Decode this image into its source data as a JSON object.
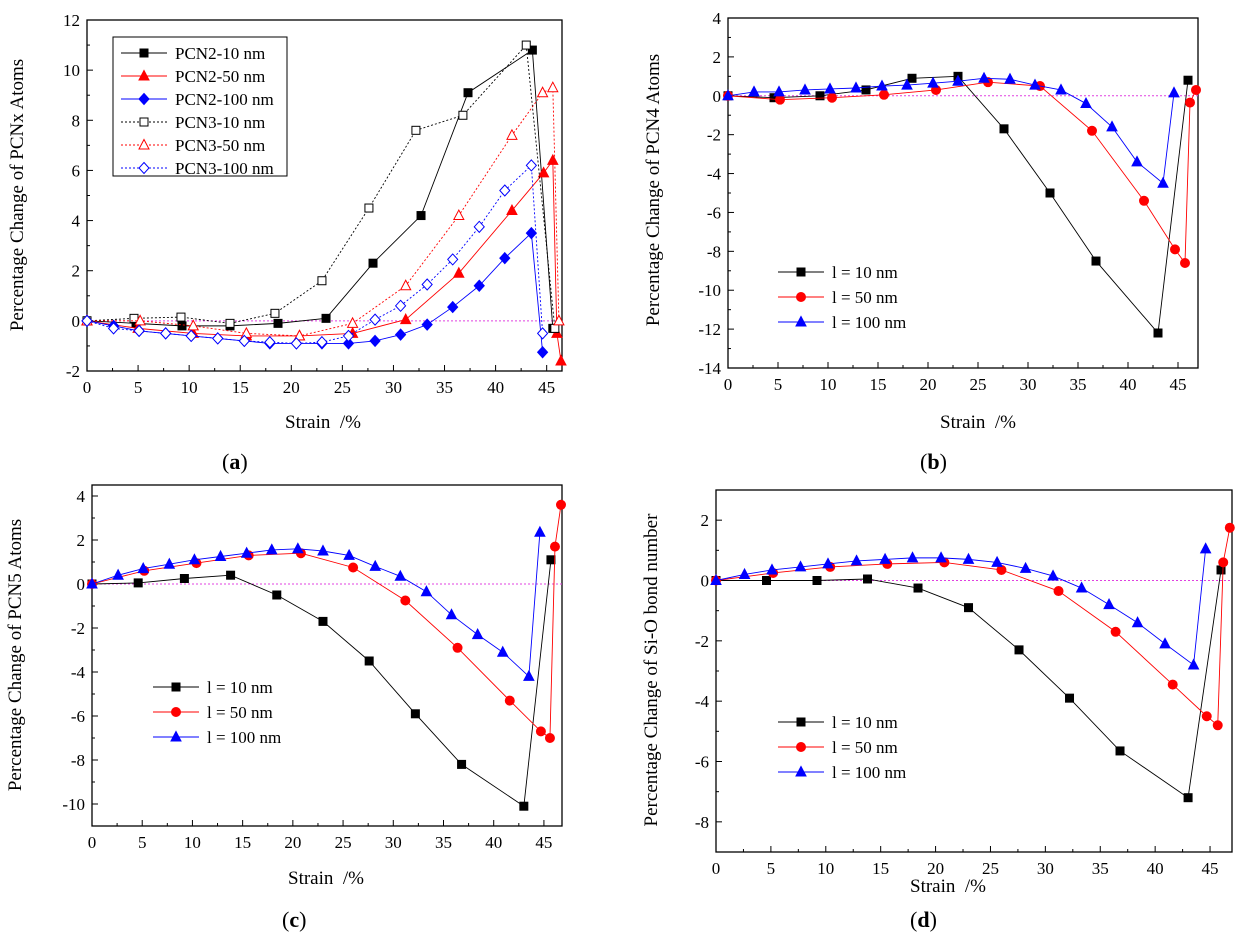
{
  "colors": {
    "black": "#000000",
    "red": "#ff0000",
    "blue": "#0000ff",
    "zero_line": "#e040e0"
  },
  "chart_data": [
    {
      "id": "a",
      "type": "line",
      "caption": "a",
      "xlabel": "Strain  /%",
      "ylabel": "Percentage Change of PCNx Atoms",
      "xlim": [
        0,
        46.5
      ],
      "ylim": [
        -2,
        12
      ],
      "xticks": [
        0,
        5,
        10,
        15,
        20,
        25,
        30,
        35,
        40,
        45
      ],
      "yticks": [
        -2,
        0,
        2,
        4,
        6,
        8,
        10,
        12
      ],
      "legend": "top-left",
      "legend_box": true,
      "series": [
        {
          "name": "PCN2-10 nm",
          "color": "#000000",
          "marker": "square",
          "filled": true,
          "dashed": false,
          "x": [
            0,
            4.8,
            9.3,
            14,
            18.7,
            23.4,
            28,
            32.7,
            37.3,
            43.6,
            45.6
          ],
          "y": [
            0,
            -0.1,
            -0.2,
            -0.2,
            -0.1,
            0.1,
            2.3,
            4.2,
            9.1,
            10.8,
            -0.3
          ]
        },
        {
          "name": "PCN2-50 nm",
          "color": "#ff0000",
          "marker": "triangle",
          "filled": true,
          "dashed": false,
          "x": [
            0,
            5,
            10.4,
            15.6,
            20.8,
            26,
            31.2,
            36.4,
            41.6,
            44.7,
            45.6,
            46,
            46.4
          ],
          "y": [
            0,
            -0.3,
            -0.5,
            -0.6,
            -0.6,
            -0.5,
            0.05,
            1.9,
            4.4,
            5.9,
            6.4,
            -0.5,
            -1.6
          ]
        },
        {
          "name": "PCN2-100 nm",
          "color": "#0000ff",
          "marker": "diamond",
          "filled": true,
          "dashed": false,
          "x": [
            0,
            2.6,
            5.1,
            7.7,
            10.2,
            12.8,
            15.4,
            17.9,
            20.5,
            23,
            25.6,
            28.2,
            30.7,
            33.3,
            35.8,
            38.4,
            40.9,
            43.5,
            44.6
          ],
          "y": [
            0,
            -0.2,
            -0.4,
            -0.5,
            -0.6,
            -0.7,
            -0.8,
            -0.9,
            -0.9,
            -0.9,
            -0.9,
            -0.8,
            -0.55,
            -0.15,
            0.55,
            1.4,
            2.5,
            3.5,
            -1.25
          ]
        },
        {
          "name": "PCN3-10 nm",
          "color": "#000000",
          "marker": "square",
          "filled": false,
          "dashed": true,
          "x": [
            0,
            4.6,
            9.2,
            14,
            18.4,
            23,
            27.6,
            32.2,
            36.8,
            43,
            45.8
          ],
          "y": [
            0,
            0.1,
            0.15,
            -0.1,
            0.3,
            1.6,
            4.5,
            7.6,
            8.2,
            11,
            -0.3
          ]
        },
        {
          "name": "PCN3-50 nm",
          "color": "#ff0000",
          "marker": "triangle",
          "filled": false,
          "dashed": true,
          "x": [
            0,
            5.2,
            10.4,
            15.6,
            20.8,
            26,
            31.2,
            36.4,
            41.6,
            44.6,
            45.6,
            46.2
          ],
          "y": [
            0,
            0,
            -0.2,
            -0.5,
            -0.6,
            -0.1,
            1.4,
            4.2,
            7.4,
            9.1,
            9.3,
            0
          ]
        },
        {
          "name": "PCN3-100 nm",
          "color": "#0000ff",
          "marker": "diamond",
          "filled": false,
          "dashed": true,
          "x": [
            0,
            2.6,
            5.1,
            7.7,
            10.2,
            12.8,
            15.4,
            17.9,
            20.5,
            23,
            25.6,
            28.2,
            30.7,
            33.3,
            35.8,
            38.4,
            40.9,
            43.5,
            44.6
          ],
          "y": [
            0,
            -0.3,
            -0.4,
            -0.5,
            -0.6,
            -0.7,
            -0.8,
            -0.85,
            -0.9,
            -0.85,
            -0.6,
            0.05,
            0.6,
            1.45,
            2.45,
            3.75,
            5.2,
            6.2,
            -0.5
          ]
        }
      ]
    },
    {
      "id": "b",
      "type": "line",
      "caption": "b",
      "xlabel": "Strain  /%",
      "ylabel": "Percentage Change of PCN4 Atoms",
      "xlim": [
        0,
        47
      ],
      "ylim": [
        -14,
        4
      ],
      "xticks": [
        0,
        5,
        10,
        15,
        20,
        25,
        30,
        35,
        40,
        45
      ],
      "yticks": [
        -14,
        -12,
        -10,
        -8,
        -6,
        -4,
        -2,
        0,
        2,
        4
      ],
      "legend": "bottom-left",
      "legend_box": false,
      "series": [
        {
          "name": "l = 10 nm",
          "color": "#000000",
          "marker": "square",
          "filled": true,
          "dashed": false,
          "x": [
            0,
            4.6,
            9.2,
            13.8,
            18.4,
            23,
            27.6,
            32.2,
            36.8,
            43,
            46
          ],
          "y": [
            0,
            -0.1,
            0,
            0.3,
            0.9,
            1.0,
            -1.7,
            -5.0,
            -8.5,
            -12.2,
            0.8
          ]
        },
        {
          "name": "l = 50 nm",
          "color": "#ff0000",
          "marker": "circle",
          "filled": true,
          "dashed": false,
          "x": [
            0,
            5.2,
            10.4,
            15.6,
            20.8,
            26,
            31.2,
            36.4,
            41.6,
            44.7,
            45.7,
            46.2,
            46.8
          ],
          "y": [
            0,
            -0.2,
            -0.1,
            0.05,
            0.3,
            0.7,
            0.5,
            -1.8,
            -5.4,
            -7.9,
            -8.6,
            -0.35,
            0.3
          ]
        },
        {
          "name": "l = 100 nm",
          "color": "#0000ff",
          "marker": "triangle",
          "filled": true,
          "dashed": false,
          "x": [
            0,
            2.6,
            5.1,
            7.7,
            10.2,
            12.8,
            15.4,
            17.9,
            20.5,
            23,
            25.6,
            28.2,
            30.7,
            33.3,
            35.8,
            38.4,
            40.9,
            43.5,
            44.6
          ],
          "y": [
            0,
            0.2,
            0.2,
            0.3,
            0.35,
            0.4,
            0.5,
            0.55,
            0.65,
            0.75,
            0.9,
            0.85,
            0.55,
            0.3,
            -0.4,
            -1.6,
            -3.4,
            -4.5,
            0.15
          ]
        }
      ]
    },
    {
      "id": "c",
      "type": "line",
      "caption": "c",
      "xlabel": "Strain  /%",
      "ylabel": "Percentage Change of PCN5 Atoms",
      "xlim": [
        0,
        46.8
      ],
      "ylim": [
        -11,
        4.5
      ],
      "xticks": [
        0,
        5,
        10,
        15,
        20,
        25,
        30,
        35,
        40,
        45
      ],
      "yticks": [
        -10,
        -8,
        -6,
        -4,
        -2,
        0,
        2,
        4
      ],
      "legend": "bottom-left",
      "legend_box": false,
      "series": [
        {
          "name": "l = 10 nm",
          "color": "#000000",
          "marker": "square",
          "filled": true,
          "dashed": false,
          "x": [
            0,
            4.6,
            9.2,
            13.8,
            18.4,
            23,
            27.6,
            32.2,
            36.8,
            43,
            45.7
          ],
          "y": [
            0,
            0.05,
            0.25,
            0.4,
            -0.5,
            -1.7,
            -3.5,
            -5.9,
            -8.2,
            -10.1,
            1.1
          ]
        },
        {
          "name": "l = 50 nm",
          "color": "#ff0000",
          "marker": "circle",
          "filled": true,
          "dashed": false,
          "x": [
            0,
            5.2,
            10.4,
            15.6,
            20.8,
            26,
            31.2,
            36.4,
            41.6,
            44.7,
            45.6,
            46.1,
            46.7
          ],
          "y": [
            0,
            0.6,
            0.95,
            1.3,
            1.4,
            0.75,
            -0.75,
            -2.9,
            -5.3,
            -6.7,
            -7.0,
            1.7,
            3.6
          ]
        },
        {
          "name": "l = 100 nm",
          "color": "#0000ff",
          "marker": "triangle",
          "filled": true,
          "dashed": false,
          "x": [
            0,
            2.6,
            5.1,
            7.7,
            10.2,
            12.8,
            15.4,
            17.9,
            20.5,
            23,
            25.6,
            28.2,
            30.7,
            33.3,
            35.8,
            38.4,
            40.9,
            43.5,
            44.6
          ],
          "y": [
            0,
            0.4,
            0.7,
            0.9,
            1.1,
            1.25,
            1.4,
            1.55,
            1.6,
            1.5,
            1.3,
            0.8,
            0.35,
            -0.35,
            -1.4,
            -2.3,
            -3.1,
            -4.2,
            2.35
          ]
        }
      ]
    },
    {
      "id": "d",
      "type": "line",
      "caption": "d",
      "xlabel": "Strain  /%",
      "ylabel": "Percentage Change of Si-O bond number",
      "xlim": [
        0,
        47
      ],
      "ylim": [
        -9,
        3
      ],
      "xticks": [
        0,
        5,
        10,
        15,
        20,
        25,
        30,
        35,
        40,
        45
      ],
      "yticks": [
        -8,
        -6,
        -4,
        -2,
        0,
        2
      ],
      "legend": "bottom-left",
      "legend_box": false,
      "series": [
        {
          "name": "l = 10 nm",
          "color": "#000000",
          "marker": "square",
          "filled": true,
          "dashed": false,
          "x": [
            0,
            4.6,
            9.2,
            13.8,
            18.4,
            23,
            27.6,
            32.2,
            36.8,
            43,
            46
          ],
          "y": [
            0,
            0,
            0,
            0.05,
            -0.25,
            -0.9,
            -2.3,
            -3.9,
            -5.65,
            -7.2,
            0.35
          ]
        },
        {
          "name": "l = 50 nm",
          "color": "#ff0000",
          "marker": "circle",
          "filled": true,
          "dashed": false,
          "x": [
            0,
            5.2,
            10.4,
            15.6,
            20.8,
            26,
            31.2,
            36.4,
            41.6,
            44.7,
            45.7,
            46.2,
            46.8
          ],
          "y": [
            0,
            0.25,
            0.45,
            0.55,
            0.6,
            0.35,
            -0.35,
            -1.7,
            -3.45,
            -4.5,
            -4.8,
            0.6,
            1.75
          ]
        },
        {
          "name": "l = 100 nm",
          "color": "#0000ff",
          "marker": "triangle",
          "filled": true,
          "dashed": false,
          "x": [
            0,
            2.6,
            5.1,
            7.7,
            10.2,
            12.8,
            15.4,
            17.9,
            20.5,
            23,
            25.6,
            28.2,
            30.7,
            33.3,
            35.8,
            38.4,
            40.9,
            43.5,
            44.6
          ],
          "y": [
            0,
            0.2,
            0.35,
            0.45,
            0.55,
            0.65,
            0.7,
            0.75,
            0.75,
            0.7,
            0.6,
            0.4,
            0.15,
            -0.25,
            -0.8,
            -1.4,
            -2.1,
            -2.8,
            1.05
          ]
        }
      ]
    }
  ]
}
